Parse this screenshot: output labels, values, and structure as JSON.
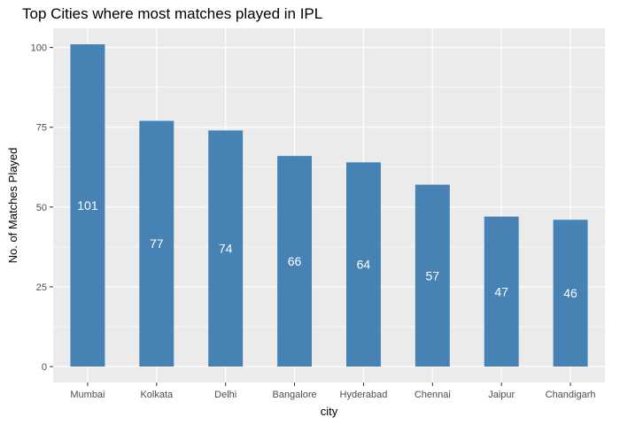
{
  "chart_data": {
    "type": "bar",
    "title": "Top Cities where most matches played in IPL",
    "xlabel": "city",
    "ylabel": "No. of Matches Played",
    "categories": [
      "Mumbai",
      "Kolkata",
      "Delhi",
      "Bangalore",
      "Hyderabad",
      "Chennai",
      "Jaipur",
      "Chandigarh"
    ],
    "values": [
      101,
      77,
      74,
      66,
      64,
      57,
      47,
      46
    ],
    "data_labels": [
      "101",
      "77",
      "74",
      "66",
      "64",
      "57",
      "47",
      "46"
    ],
    "yticks": [
      0,
      25,
      50,
      75,
      100
    ],
    "ytick_labels": [
      "0",
      "25",
      "50",
      "75",
      "100"
    ],
    "ylim": [
      -5,
      106
    ],
    "grid": true,
    "legend": "none",
    "bar_color": "#4682B4",
    "panel_background": "#EBEBEB",
    "grid_color": "#FFFFFF"
  }
}
